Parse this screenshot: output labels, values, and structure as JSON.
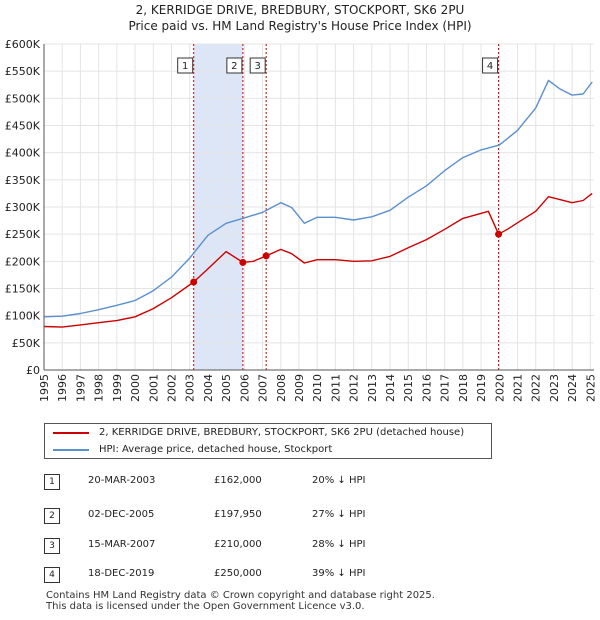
{
  "title_line1": "2, KERRIDGE DRIVE, BREDBURY, STOCKPORT, SK6 2PU",
  "title_line2": "Price paid vs. HM Land Registry's House Price Index (HPI)",
  "chart_data": {
    "type": "line",
    "title": "2, KERRIDGE DRIVE, BREDBURY, STOCKPORT, SK6 2PU — Price paid vs. HM Land Registry's House Price Index (HPI)",
    "xlim": [
      1995,
      2025.2
    ],
    "ylim": [
      0,
      600000
    ],
    "x_ticks": [
      1995,
      1996,
      1997,
      1998,
      1999,
      2000,
      2001,
      2002,
      2003,
      2004,
      2005,
      2006,
      2007,
      2008,
      2009,
      2010,
      2011,
      2012,
      2013,
      2014,
      2015,
      2016,
      2017,
      2018,
      2019,
      2020,
      2021,
      2022,
      2023,
      2024,
      2025
    ],
    "y_ticks": [
      0,
      50000,
      100000,
      150000,
      200000,
      250000,
      300000,
      350000,
      400000,
      450000,
      500000,
      550000,
      600000
    ],
    "y_tick_labels": [
      "£0",
      "£50K",
      "£100K",
      "£150K",
      "£200K",
      "£250K",
      "£300K",
      "£350K",
      "£400K",
      "£450K",
      "£500K",
      "£550K",
      "£600K"
    ],
    "colors": {
      "property": "#cc0000",
      "hpi": "#5b8fcf",
      "shade": "#dde6f7",
      "vline": "#cc0000",
      "grid": "#e4e4e4"
    },
    "shaded_ranges": [
      [
        2003.22,
        2005.92
      ],
      [
        2007.2,
        2007.2
      ]
    ],
    "series": [
      {
        "name": "2, KERRIDGE DRIVE, BREDBURY, STOCKPORT, SK6 2PU (detached house)",
        "x": [
          1995,
          1996,
          1997,
          1998,
          1999,
          2000,
          2001,
          2002,
          2003.22,
          2004,
          2005,
          2005.92,
          2006.5,
          2007.2,
          2008,
          2008.6,
          2009.3,
          2010,
          2011,
          2012,
          2013,
          2014,
          2015,
          2016,
          2017,
          2018,
          2019.4,
          2019.96,
          2020.5,
          2021,
          2022,
          2022.7,
          2023.3,
          2024,
          2024.6,
          2025.1
        ],
        "values": [
          80000,
          79000,
          83000,
          87000,
          91000,
          98000,
          113000,
          133000,
          162000,
          186000,
          218000,
          197950,
          200000,
          210000,
          222000,
          214000,
          197000,
          203000,
          203000,
          200000,
          201000,
          209000,
          225000,
          240000,
          259000,
          279000,
          292000,
          250000,
          260000,
          271000,
          292000,
          319000,
          314000,
          308000,
          312000,
          325000
        ]
      },
      {
        "name": "HPI: Average price, detached house, Stockport",
        "x": [
          1995,
          1996,
          1997,
          1998,
          1999,
          2000,
          2001,
          2002,
          2003,
          2004,
          2005,
          2006,
          2007,
          2008,
          2008.6,
          2009.3,
          2010,
          2011,
          2012,
          2013,
          2014,
          2015,
          2016,
          2017,
          2018,
          2019,
          2020,
          2021,
          2022,
          2022.7,
          2023.3,
          2024,
          2024.6,
          2025.1
        ],
        "values": [
          98000,
          99000,
          104000,
          111000,
          119000,
          128000,
          146000,
          171000,
          206000,
          248000,
          270000,
          280000,
          290000,
          308000,
          299000,
          270000,
          281000,
          281000,
          276000,
          282000,
          294000,
          318000,
          339000,
          367000,
          391000,
          405000,
          414000,
          441000,
          482000,
          533000,
          518000,
          506000,
          508000,
          530000
        ]
      }
    ],
    "sales": [
      {
        "num": "1",
        "x": 2003.22,
        "price": 162000,
        "date": "20-MAR-2003",
        "price_label": "£162,000",
        "hpi": "20% ↓ HPI"
      },
      {
        "num": "2",
        "x": 2005.92,
        "price": 197950,
        "date": "02-DEC-2005",
        "price_label": "£197,950",
        "hpi": "27% ↓ HPI"
      },
      {
        "num": "3",
        "x": 2007.2,
        "price": 210000,
        "date": "15-MAR-2007",
        "price_label": "£210,000",
        "hpi": "28% ↓ HPI"
      },
      {
        "num": "4",
        "x": 2019.96,
        "price": 250000,
        "date": "18-DEC-2019",
        "price_label": "£250,000",
        "hpi": "39% ↓ HPI"
      }
    ]
  },
  "legend": {
    "property_label": "2, KERRIDGE DRIVE, BREDBURY, STOCKPORT, SK6 2PU (detached house)",
    "hpi_label": "HPI: Average price, detached house, Stockport"
  },
  "footer": {
    "line1": "Contains HM Land Registry data © Crown copyright and database right 2025.",
    "line2": "This data is licensed under the Open Government Licence v3.0."
  }
}
